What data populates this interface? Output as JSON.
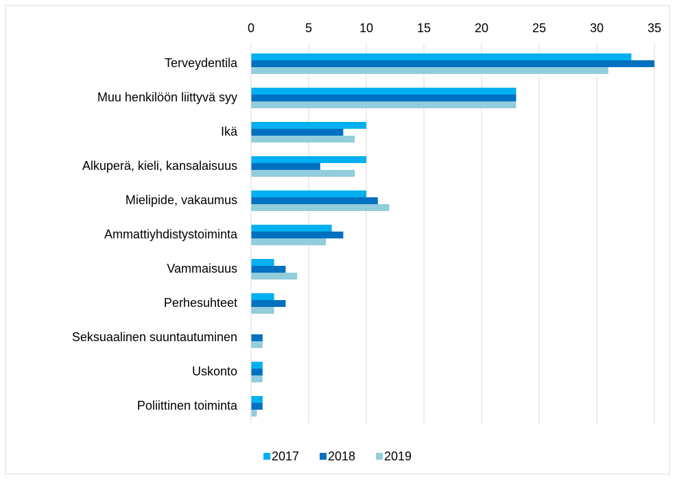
{
  "chart_data": {
    "type": "bar",
    "orientation": "horizontal",
    "categories": [
      "Terveydentila",
      "Muu henkilöön liittyvä syy",
      "Ikä",
      "Alkuperä, kieli, kansalaisuus",
      "Mielipide, vakaumus",
      "Ammattiyhdistystoiminta",
      "Vammaisuus",
      "Perhesuhteet",
      "Seksuaalinen suuntautuminen",
      "Uskonto",
      "Poliittinen toiminta"
    ],
    "series": [
      {
        "name": "2017",
        "color": "#00b0f0",
        "values": [
          33,
          23,
          10,
          10,
          10,
          7,
          2,
          2,
          0,
          1,
          1
        ]
      },
      {
        "name": "2018",
        "color": "#0070c0",
        "values": [
          35,
          23,
          8,
          6,
          11,
          8,
          3,
          3,
          1,
          1,
          1
        ]
      },
      {
        "name": "2019",
        "color": "#92cddc",
        "values": [
          31,
          23,
          9,
          9,
          12,
          6.5,
          4,
          2,
          1,
          1,
          0.5
        ]
      }
    ],
    "xlim": [
      0,
      35
    ],
    "xticks": [
      0,
      5,
      10,
      15,
      20,
      25,
      30,
      35
    ],
    "grid": true,
    "legend": "bottom"
  }
}
